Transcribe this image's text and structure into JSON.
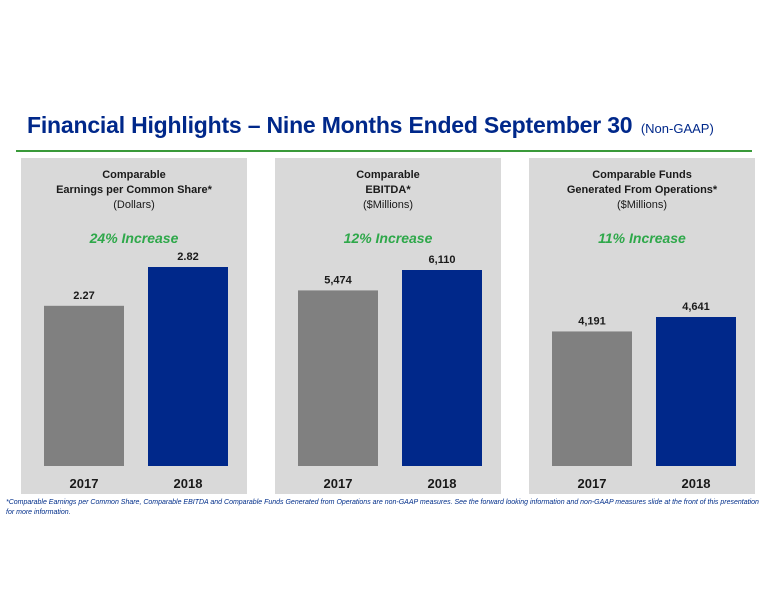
{
  "title": {
    "main": "Financial Highlights – Nine Months Ended September 30",
    "suffix": "(Non-GAAP)"
  },
  "colors": {
    "title": "#00288a",
    "rule": "#3a9a3a",
    "panel_bg": "#d9d9d9",
    "bar_2017": "#808080",
    "bar_2018": "#00288a",
    "increase": "#2ea84a"
  },
  "panels": [
    {
      "line1": "Comparable",
      "line2": "Earnings per Common Share*",
      "unit": "(Dollars)",
      "increase": "24% Increase"
    },
    {
      "line1": "Comparable",
      "line2": "EBITDA*",
      "unit": "($Millions)",
      "increase": "12% Increase"
    },
    {
      "line1": "Comparable Funds",
      "line2": "Generated From Operations*",
      "unit": "($Millions)",
      "increase": "11% Increase"
    }
  ],
  "chart_data": [
    {
      "type": "bar",
      "categories": [
        "2017",
        "2018"
      ],
      "values": [
        2.27,
        2.82
      ],
      "labels": [
        "2.27",
        "2.82"
      ]
    },
    {
      "type": "bar",
      "categories": [
        "2017",
        "2018"
      ],
      "values": [
        5474,
        6110
      ],
      "labels": [
        "5,474",
        "6,110"
      ]
    },
    {
      "type": "bar",
      "categories": [
        "2017",
        "2018"
      ],
      "values": [
        4191,
        4641
      ],
      "labels": [
        "4,191",
        "4,641"
      ]
    }
  ],
  "footnote": "*Comparable Earnings per Common Share, Comparable EBITDA and Comparable Funds Generated from Operations are non-GAAP measures.  See the forward looking information and non-GAAP measures slide at the front of this presentation for more information."
}
